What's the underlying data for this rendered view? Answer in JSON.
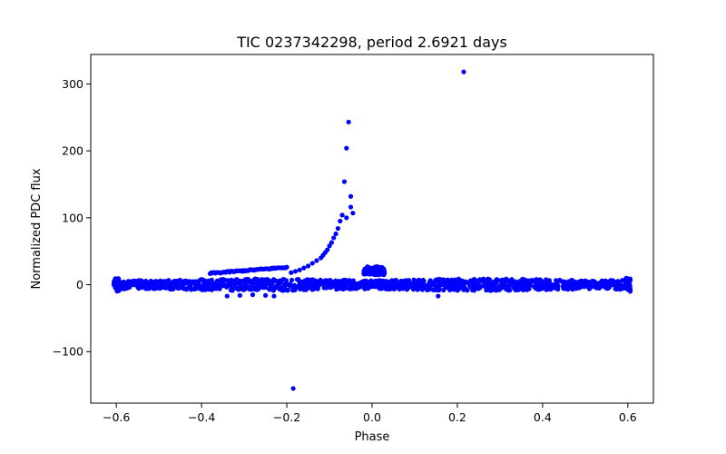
{
  "chart_data": {
    "type": "scatter",
    "title": "TIC 0237342298, period 2.6921 days",
    "xlabel": "Phase",
    "ylabel": "Normalized PDC flux",
    "xlim": [
      -0.66,
      0.66
    ],
    "ylim": [
      -177,
      344
    ],
    "x_ticks": [
      -0.6,
      -0.4,
      -0.2,
      0.0,
      0.2,
      0.4,
      0.6
    ],
    "x_tick_labels": [
      "−0.6",
      "−0.4",
      "−0.2",
      "0.0",
      "0.2",
      "0.4",
      "0.6"
    ],
    "y_ticks": [
      -100,
      0,
      100,
      200,
      300
    ],
    "y_tick_labels": [
      "−100",
      "0",
      "100",
      "200",
      "300"
    ],
    "grid": false,
    "marker_color": "#0000ff",
    "series": [
      {
        "name": "baseline band",
        "x_range": [
          -0.6,
          0.6
        ],
        "center": 0,
        "half_width": 8,
        "count": 1300
      },
      {
        "name": "upper band segment",
        "x_range": [
          -0.38,
          -0.2
        ],
        "y_start": 17,
        "y_end": 26,
        "count": 60
      },
      {
        "name": "transit bump",
        "x_range": [
          -0.02,
          0.03
        ],
        "y": 27,
        "count": 90
      },
      {
        "name": "flare points",
        "x": [
          -0.19,
          -0.18,
          -0.17,
          -0.16,
          -0.15,
          -0.14,
          -0.13,
          -0.12,
          -0.115,
          -0.11,
          -0.105,
          -0.1,
          -0.095,
          -0.09,
          -0.085,
          -0.08,
          -0.075,
          -0.07,
          -0.065,
          -0.06,
          -0.055,
          -0.05,
          -0.045,
          -0.05,
          -0.06
        ],
        "y": [
          18,
          20,
          22,
          25,
          28,
          32,
          36,
          40,
          44,
          48,
          52,
          58,
          63,
          70,
          76,
          84,
          95,
          104,
          154,
          204,
          243,
          132,
          107,
          116,
          100
        ]
      },
      {
        "name": "outliers",
        "x": [
          0.215,
          -0.185,
          0.155,
          -0.34,
          -0.31,
          -0.28,
          -0.25,
          -0.23
        ],
        "y": [
          318,
          -155,
          -17,
          -17,
          -16,
          -15,
          -16,
          -17
        ]
      }
    ]
  }
}
